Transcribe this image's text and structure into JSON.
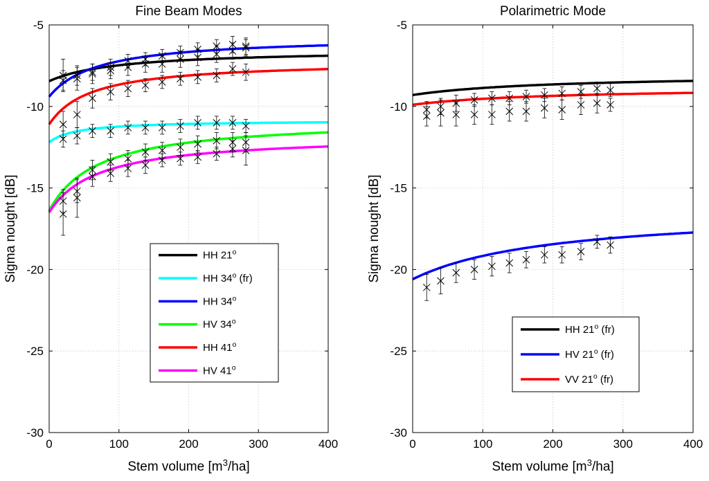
{
  "chart_data": [
    {
      "type": "line",
      "title": "Fine Beam Modes",
      "xlabel_parts": [
        "Stem volume  [m",
        "3",
        "/ha]"
      ],
      "ylabel": "Sigma nought  [dB]",
      "xlim": [
        0,
        400
      ],
      "ylim": [
        -30,
        -5
      ],
      "xticks": [
        0,
        100,
        200,
        300,
        400
      ],
      "yticks": [
        -30,
        -25,
        -20,
        -15,
        -10,
        -5
      ],
      "grid": true,
      "legend_position": "lower-center",
      "series": [
        {
          "name_parts": [
            "HH 21",
            "o",
            ""
          ],
          "color": "#000000",
          "curve": {
            "a": -8.45,
            "b": -6.5,
            "k": 100
          }
        },
        {
          "name_parts": [
            "HH 34",
            "o",
            " (fr)"
          ],
          "color": "#00ffff",
          "curve": {
            "a": -12.2,
            "b": -10.85,
            "k": 40
          }
        },
        {
          "name_parts": [
            "HH 34",
            "o",
            ""
          ],
          "color": "#0000ff",
          "curve": {
            "a": -9.4,
            "b": -5.7,
            "k": 70
          }
        },
        {
          "name_parts": [
            "HV 34",
            "o",
            ""
          ],
          "color": "#00ff00",
          "curve": {
            "a": -16.4,
            "b": -10.75,
            "k": 70
          }
        },
        {
          "name_parts": [
            "HH 41",
            "o",
            ""
          ],
          "color": "#ff0000",
          "curve": {
            "a": -11.1,
            "b": -7.2,
            "k": 60
          }
        },
        {
          "name_parts": [
            "HV 41",
            "o",
            ""
          ],
          "color": "#ff00ff",
          "curve": {
            "a": -16.5,
            "b": -11.75,
            "k": 70
          }
        }
      ],
      "observations": [
        {
          "x": [
            20,
            40,
            62,
            88,
            113,
            138,
            162,
            188,
            213,
            240,
            263,
            282
          ],
          "y": [
            -8.1,
            -8.3,
            -8.0,
            -7.8,
            -7.6,
            -7.4,
            -7.4,
            -7.1,
            -7.0,
            -6.8,
            -6.6,
            -6.4
          ],
          "err": [
            1.0,
            0.7,
            0.6,
            0.5,
            0.5,
            0.5,
            0.5,
            0.5,
            0.5,
            0.5,
            0.5,
            0.5
          ]
        },
        {
          "x": [
            20,
            40,
            62,
            88,
            113,
            138,
            162,
            188,
            213,
            240,
            263,
            282
          ],
          "y": [
            -8.4,
            -8.1,
            -7.9,
            -7.6,
            -7.2,
            -7.1,
            -6.9,
            -6.7,
            -6.5,
            -6.3,
            -6.2,
            -6.3
          ],
          "err": [
            0.6,
            0.6,
            0.5,
            0.5,
            0.4,
            0.4,
            0.4,
            0.4,
            0.4,
            0.4,
            0.5,
            0.5
          ]
        },
        {
          "x": [
            20,
            40,
            62,
            88,
            113,
            138,
            162,
            188,
            213,
            240,
            263,
            282
          ],
          "y": [
            -11.1,
            -10.5,
            -9.5,
            -9.1,
            -8.9,
            -8.7,
            -8.5,
            -8.3,
            -8.2,
            -8.1,
            -7.7,
            -7.9
          ],
          "err": [
            0.8,
            0.8,
            0.6,
            0.5,
            0.5,
            0.4,
            0.4,
            0.4,
            0.4,
            0.4,
            0.4,
            0.5
          ]
        },
        {
          "x": [
            20,
            40,
            62,
            88,
            113,
            138,
            162,
            188,
            213,
            240,
            263,
            282
          ],
          "y": [
            -12.0,
            -11.8,
            -11.5,
            -11.5,
            -11.3,
            -11.3,
            -11.3,
            -11.2,
            -11.0,
            -11.0,
            -11.0,
            -11.2
          ],
          "err": [
            0.5,
            0.5,
            0.4,
            0.4,
            0.4,
            0.4,
            0.4,
            0.4,
            0.4,
            0.4,
            0.4,
            0.4
          ]
        },
        {
          "x": [
            20,
            40,
            62,
            88,
            113,
            138,
            162,
            188,
            213,
            240,
            263,
            282
          ],
          "y": [
            -15.8,
            -15.2,
            -13.9,
            -13.4,
            -13.2,
            -12.8,
            -12.7,
            -12.5,
            -12.3,
            -12.1,
            -12.2,
            -12.2
          ],
          "err": [
            0.7,
            0.7,
            0.6,
            0.5,
            0.5,
            0.5,
            0.5,
            0.5,
            0.5,
            0.5,
            0.6,
            0.6
          ]
        },
        {
          "x": [
            20,
            40,
            62,
            88,
            113,
            138,
            162,
            188,
            213,
            240,
            263,
            282
          ],
          "y": [
            -16.6,
            -15.6,
            -14.3,
            -14.1,
            -13.8,
            -13.6,
            -13.3,
            -13.2,
            -13.1,
            -12.9,
            -12.6,
            -12.7
          ],
          "err": [
            1.3,
            1.2,
            0.6,
            0.5,
            0.5,
            0.5,
            0.4,
            0.4,
            0.4,
            0.4,
            0.5,
            0.9
          ]
        }
      ]
    },
    {
      "type": "line",
      "title": "Polarimetric Mode",
      "xlabel_parts": [
        "Stem volume  [m",
        "3",
        "/ha]"
      ],
      "ylabel": "Sigma nought  [dB]",
      "xlim": [
        0,
        400
      ],
      "ylim": [
        -30,
        -5
      ],
      "xticks": [
        0,
        100,
        200,
        300,
        400
      ],
      "yticks": [
        -30,
        -25,
        -20,
        -15,
        -10,
        -5
      ],
      "grid": true,
      "legend_position": "lower-right",
      "series": [
        {
          "name_parts": [
            "HH 21",
            "o",
            " (fr)"
          ],
          "color": "#000000",
          "curve": {
            "a": -9.3,
            "b": -8.0,
            "k": 200
          }
        },
        {
          "name_parts": [
            "HV 21",
            "o",
            " (fr)"
          ],
          "color": "#0000ff",
          "curve": {
            "a": -20.6,
            "b": -16.3,
            "k": 200
          }
        },
        {
          "name_parts": [
            "VV 21",
            "o",
            " (fr)"
          ],
          "color": "#ff0000",
          "curve": {
            "a": -9.9,
            "b": -8.8,
            "k": 200
          }
        }
      ],
      "observations": [
        {
          "x": [
            20,
            40,
            62,
            88,
            113,
            138,
            162,
            188,
            213,
            240,
            263,
            282
          ],
          "y": [
            -10.2,
            -10.0,
            -9.8,
            -9.6,
            -9.5,
            -9.5,
            -9.4,
            -9.3,
            -9.2,
            -9.1,
            -8.9,
            -9.0
          ],
          "err": [
            0.5,
            0.5,
            0.5,
            0.4,
            0.4,
            0.4,
            0.4,
            0.4,
            0.4,
            0.4,
            0.4,
            0.4
          ]
        },
        {
          "x": [
            20,
            40,
            62,
            88,
            113,
            138,
            162,
            188,
            213,
            240,
            263,
            282
          ],
          "y": [
            -10.6,
            -10.4,
            -10.5,
            -10.5,
            -10.5,
            -10.3,
            -10.3,
            -10.1,
            -10.2,
            -9.9,
            -9.8,
            -9.9
          ],
          "err": [
            0.6,
            0.8,
            0.7,
            0.6,
            0.6,
            0.6,
            0.6,
            0.6,
            0.6,
            0.6,
            0.6,
            0.4
          ]
        },
        {
          "x": [
            20,
            40,
            62,
            88,
            113,
            138,
            162,
            188,
            213,
            240,
            263,
            282
          ],
          "y": [
            -21.1,
            -20.7,
            -20.2,
            -20.0,
            -19.8,
            -19.6,
            -19.4,
            -19.1,
            -19.1,
            -18.9,
            -18.3,
            -18.5
          ],
          "err": [
            0.8,
            0.8,
            0.6,
            0.6,
            0.6,
            0.6,
            0.5,
            0.5,
            0.5,
            0.5,
            0.4,
            0.5
          ]
        }
      ]
    }
  ]
}
